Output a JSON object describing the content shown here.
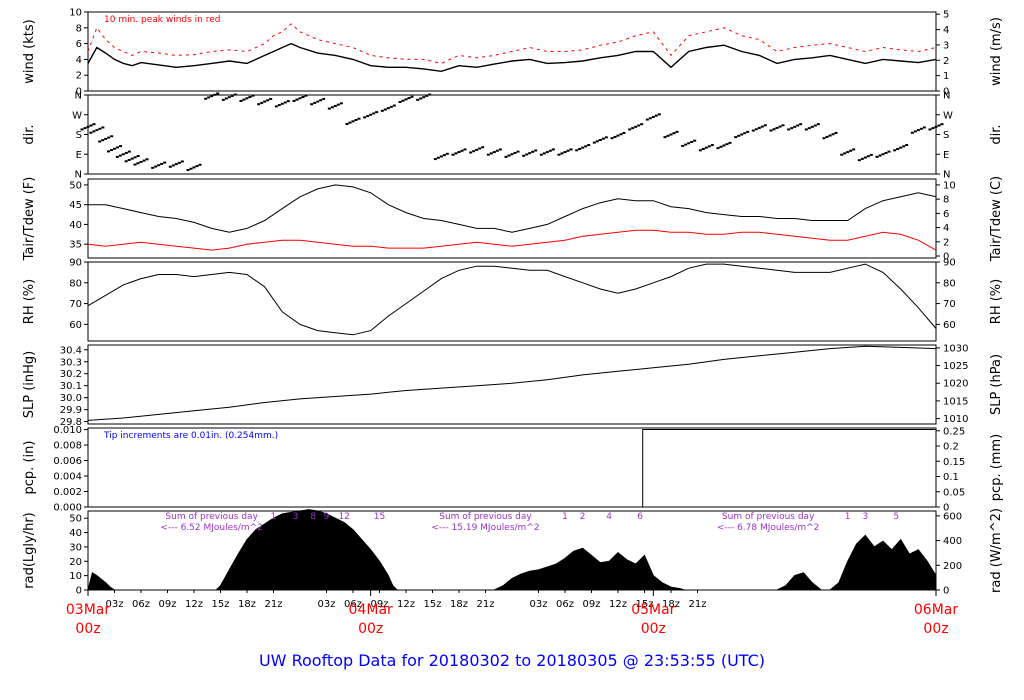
{
  "title": "UW Rooftop Data for 20180302  to  20180305 @ 23:53:55  (UTC)",
  "colors": {
    "primary": "#000000",
    "peak": "#ff0000",
    "dew": "#ff0000",
    "note": "#0000ff",
    "solar": "#9933cc",
    "date": "#ff0000",
    "title": "#0000ff"
  },
  "x_axis": {
    "hours_total": 96,
    "minor_ticks": [
      "03z",
      "06z",
      "09z",
      "12z",
      "15z",
      "18z",
      "21z",
      "03z",
      "06z",
      "09z",
      "12z",
      "15z",
      "18z",
      "21z",
      "03z",
      "06z",
      "09z",
      "12z",
      "15z",
      "18z",
      "21z"
    ],
    "minor_hours": [
      3,
      6,
      9,
      12,
      15,
      18,
      21,
      27,
      30,
      33,
      36,
      39,
      42,
      45,
      51,
      54,
      57,
      60,
      63,
      66,
      69
    ],
    "major": [
      {
        "date": "03Mar",
        "time": "00z",
        "hour": 0
      },
      {
        "date": "04Mar",
        "time": "00z",
        "hour": 32
      },
      {
        "date": "05Mar",
        "time": "00z",
        "hour": 64
      },
      {
        "date": "06Mar",
        "time": "00z",
        "hour": 96
      }
    ]
  },
  "chart_data": [
    {
      "type": "line",
      "id": "wind",
      "ylabel_left": "wind (kts)",
      "ylabel_right": "wind (m/s)",
      "ylim": [
        0,
        10
      ],
      "ticks_left": [
        0,
        2,
        4,
        6,
        8,
        10
      ],
      "ticks_right": [
        0,
        1,
        2,
        3,
        4,
        5
      ],
      "right_scale": 0.5144,
      "annotation": "10 min. peak winds in red",
      "x_hours": [
        0,
        1,
        2,
        3,
        4,
        5,
        6,
        8,
        10,
        12,
        14,
        16,
        18,
        20,
        21,
        22,
        23,
        24,
        26,
        28,
        30,
        32,
        34,
        36,
        38,
        40,
        42,
        44,
        46,
        48,
        50,
        52,
        54,
        56,
        58,
        60,
        62,
        64,
        66,
        68,
        70,
        72,
        74,
        76,
        78,
        80,
        82,
        84,
        86,
        88,
        90,
        92,
        94,
        96
      ],
      "series": [
        {
          "name": "wind",
          "values": [
            3.5,
            5.5,
            4.8,
            4,
            3.5,
            3.2,
            3.6,
            3.3,
            3,
            3.2,
            3.5,
            3.8,
            3.5,
            4.5,
            5,
            5.5,
            6,
            5.5,
            4.8,
            4.5,
            4,
            3.2,
            3,
            3,
            2.8,
            2.5,
            3.2,
            3,
            3.4,
            3.8,
            4,
            3.5,
            3.6,
            3.8,
            4.2,
            4.5,
            5,
            5,
            3,
            5,
            5.5,
            5.8,
            5,
            4.5,
            3.5,
            4,
            4.2,
            4.5,
            4,
            3.5,
            4,
            3.8,
            3.6,
            4
          ]
        },
        {
          "name": "10 min. peak winds",
          "values": [
            5,
            8,
            6.5,
            5.5,
            5,
            4.5,
            5,
            4.8,
            4.5,
            4.6,
            5,
            5.2,
            5,
            6,
            7,
            7.5,
            8.5,
            7.5,
            6.5,
            6,
            5.5,
            4.5,
            4.2,
            4,
            4,
            3.5,
            4.5,
            4.2,
            4.5,
            5,
            5.5,
            5,
            5,
            5.2,
            5.8,
            6.2,
            7,
            7.5,
            4.5,
            7,
            7.5,
            8,
            7,
            6.5,
            5,
            5.5,
            5.8,
            6,
            5.5,
            5,
            5.5,
            5.2,
            5,
            5.5
          ]
        }
      ]
    },
    {
      "type": "scatter",
      "id": "dir",
      "ylabel_left": "dir.",
      "ylabel_right": "dir.",
      "ylim": [
        0,
        360
      ],
      "tick_labels": [
        "N",
        "E",
        "S",
        "W",
        "N"
      ],
      "tick_values": [
        0,
        90,
        180,
        270,
        360
      ],
      "x_hours": [
        0,
        1,
        2,
        3,
        4,
        5,
        6,
        8,
        10,
        12,
        14,
        16,
        18,
        20,
        22,
        24,
        26,
        28,
        30,
        32,
        34,
        36,
        38,
        40,
        42,
        44,
        46,
        48,
        50,
        52,
        54,
        56,
        58,
        60,
        62,
        64,
        66,
        68,
        70,
        72,
        74,
        76,
        78,
        80,
        82,
        84,
        86,
        88,
        90,
        92,
        94,
        96
      ],
      "series": [
        {
          "name": "direction",
          "values": [
            215,
            200,
            160,
            115,
            90,
            70,
            55,
            40,
            45,
            30,
            355,
            350,
            345,
            330,
            320,
            345,
            330,
            310,
            240,
            270,
            300,
            340,
            350,
            80,
            100,
            110,
            100,
            90,
            95,
            100,
            100,
            120,
            155,
            175,
            215,
            260,
            180,
            140,
            120,
            130,
            180,
            210,
            210,
            215,
            215,
            175,
            100,
            75,
            90,
            120,
            200,
            215
          ]
        }
      ]
    },
    {
      "type": "line",
      "id": "temp",
      "ylabel_left": "Tair/Tdew (F)",
      "ylabel_right": "Tair/Tdew (C)",
      "ylim": [
        31.5,
        51.5
      ],
      "ticks_left": [
        35,
        40,
        45,
        50
      ],
      "ticks_right": [
        0,
        2,
        4,
        6,
        8,
        10
      ],
      "x_hours": [
        0,
        2,
        4,
        6,
        8,
        10,
        12,
        14,
        16,
        18,
        20,
        22,
        24,
        26,
        28,
        30,
        32,
        34,
        36,
        38,
        40,
        42,
        44,
        46,
        48,
        50,
        52,
        54,
        56,
        58,
        60,
        62,
        64,
        66,
        68,
        70,
        72,
        74,
        76,
        78,
        80,
        82,
        84,
        86,
        88,
        90,
        92,
        94,
        96
      ],
      "series": [
        {
          "name": "Tair",
          "values": [
            45,
            45,
            44,
            43,
            42,
            41.5,
            40.5,
            39,
            38,
            39,
            41,
            44,
            47,
            49,
            50,
            49.5,
            48,
            45,
            43,
            41.5,
            41,
            40,
            39,
            39,
            38,
            39,
            40,
            42,
            44,
            45.5,
            46.5,
            46,
            46,
            44.5,
            44,
            43,
            42.5,
            42,
            42,
            41.5,
            41.5,
            41,
            41,
            41,
            44,
            46,
            47,
            48,
            47
          ]
        },
        {
          "name": "Tdew",
          "values": [
            35,
            34.5,
            35,
            35.5,
            35,
            34.5,
            34,
            33.5,
            34,
            35,
            35.5,
            36,
            36,
            35.5,
            35,
            34.5,
            34.5,
            34,
            34,
            34,
            34.5,
            35,
            35.5,
            35,
            34.5,
            35,
            35.5,
            36,
            37,
            37.5,
            38,
            38.5,
            38.5,
            38,
            38,
            37.5,
            37.5,
            38,
            38,
            37.5,
            37,
            36.5,
            36,
            36,
            37,
            38,
            37.5,
            36,
            33.5
          ]
        }
      ]
    },
    {
      "type": "line",
      "id": "rh",
      "ylabel_left": "RH (%)",
      "ylabel_right": "RH (%)",
      "ylim": [
        52,
        90
      ],
      "ticks_left": [
        60,
        70,
        80,
        90
      ],
      "ticks_right": [
        60,
        70,
        80,
        90
      ],
      "x_hours": [
        0,
        2,
        4,
        6,
        8,
        10,
        12,
        14,
        16,
        18,
        20,
        22,
        24,
        26,
        28,
        30,
        32,
        34,
        36,
        38,
        40,
        42,
        44,
        46,
        48,
        50,
        52,
        54,
        56,
        58,
        60,
        62,
        64,
        66,
        68,
        70,
        72,
        74,
        76,
        78,
        80,
        82,
        84,
        86,
        88,
        90,
        92,
        94,
        96
      ],
      "series": [
        {
          "name": "RH",
          "values": [
            69,
            74,
            79,
            82,
            84,
            84,
            83,
            84,
            85,
            84,
            78,
            66,
            60,
            57,
            56,
            55,
            57,
            64,
            70,
            76,
            82,
            86,
            88,
            88,
            87,
            86,
            86,
            83,
            80,
            77,
            75,
            77,
            80,
            83,
            87,
            89,
            89,
            88,
            87,
            86,
            85,
            85,
            85,
            87,
            89,
            85,
            77,
            68,
            58
          ]
        }
      ]
    },
    {
      "type": "line",
      "id": "slp",
      "ylabel_left": "SLP (inHg)",
      "ylabel_right": "SLP (hPa)",
      "ylim": [
        29.78,
        30.44
      ],
      "ticks_left": [
        29.8,
        29.9,
        30.0,
        30.1,
        30.2,
        30.3,
        30.4
      ],
      "tick_labels_left": [
        "29.8",
        "29.9",
        "30.0",
        "30.1",
        "30.2",
        "30.3",
        "30.4"
      ],
      "ticks_right": [
        1010,
        1015,
        1020,
        1025,
        1030
      ],
      "x_hours": [
        0,
        4,
        8,
        12,
        16,
        20,
        24,
        28,
        32,
        36,
        40,
        44,
        48,
        52,
        56,
        60,
        64,
        68,
        72,
        76,
        80,
        84,
        88,
        92,
        96
      ],
      "series": [
        {
          "name": "SLP",
          "values": [
            29.81,
            29.83,
            29.86,
            29.89,
            29.92,
            29.96,
            29.99,
            30.01,
            30.03,
            30.06,
            30.08,
            30.1,
            30.12,
            30.15,
            30.19,
            30.22,
            30.25,
            30.28,
            30.32,
            30.35,
            30.38,
            30.41,
            30.43,
            30.42,
            30.41
          ]
        }
      ]
    },
    {
      "type": "line",
      "id": "pcp",
      "ylabel_left": "pcp. (in)",
      "ylabel_right": "pcp. (mm)",
      "ylim": [
        0,
        0.0102
      ],
      "ticks_left": [
        0,
        0.002,
        0.004,
        0.006,
        0.008,
        0.01
      ],
      "tick_labels_left": [
        "0.000",
        "0.002",
        "0.004",
        "0.006",
        "0.008",
        "0.010"
      ],
      "ticks_right": [
        0,
        0.05,
        0.1,
        0.15,
        0.2,
        0.25
      ],
      "annotation": "Tip increments are 0.01in. (0.254mm.)",
      "x_hours": [
        0,
        62.8,
        62.8,
        96
      ],
      "series": [
        {
          "name": "precip",
          "values": [
            0,
            0,
            0.01,
            0.01
          ]
        }
      ]
    },
    {
      "type": "area",
      "id": "rad",
      "ylabel_left": "rad(Lgly/hr)",
      "ylabel_right": "rad (W/m^2)",
      "ylim": [
        0,
        55
      ],
      "ticks_left": [
        0,
        10,
        20,
        30,
        40,
        50
      ],
      "ticks_right": [
        0,
        200,
        400,
        600
      ],
      "daily_notes": [
        {
          "label": "Sum of previous day",
          "value": "<--- 6.52 MJoules/m^2",
          "hour": 14
        },
        {
          "label": "Sum of previous day",
          "value": "<--- 15.19 MJoules/m^2",
          "hour": 45
        },
        {
          "label": "Sum of previous day",
          "value": "<--- 6.78 MJoules/m^2",
          "hour": 77
        }
      ],
      "hour_marks": [
        {
          "label": "1",
          "hour": 21
        },
        {
          "label": "3",
          "hour": 23.5
        },
        {
          "label": "8",
          "hour": 25.5
        },
        {
          "label": "9",
          "hour": 27
        },
        {
          "label": "12",
          "hour": 29
        },
        {
          "label": "15",
          "hour": 33
        },
        {
          "label": "1",
          "hour": 54
        },
        {
          "label": "2",
          "hour": 56
        },
        {
          "label": "4",
          "hour": 59
        },
        {
          "label": "6",
          "hour": 62.5
        },
        {
          "label": "1",
          "hour": 86
        },
        {
          "label": "3",
          "hour": 88
        },
        {
          "label": "5",
          "hour": 91.5
        }
      ],
      "x_hours": [
        0,
        0.5,
        1,
        2,
        2.5,
        3,
        14.5,
        15,
        16,
        17,
        18,
        19,
        20,
        21,
        22,
        23,
        24,
        25,
        26,
        27,
        28,
        29,
        30,
        31,
        32,
        33,
        34,
        34.5,
        35,
        46,
        47,
        48,
        49,
        50,
        51,
        52,
        53,
        54,
        55,
        56,
        57,
        58,
        59,
        60,
        61,
        62,
        63,
        64,
        65,
        66,
        67,
        67.5,
        68,
        78,
        79,
        80,
        81,
        82,
        83,
        84,
        85,
        86,
        87,
        88,
        89,
        90,
        91,
        92,
        93,
        94,
        95,
        96
      ],
      "series": [
        {
          "name": "solar",
          "values": [
            0,
            12,
            10,
            5,
            2,
            0,
            0,
            3,
            14,
            25,
            35,
            42,
            46,
            50,
            53,
            54,
            55,
            56,
            55,
            53,
            50,
            47,
            42,
            35,
            28,
            20,
            10,
            3,
            0,
            0,
            3,
            8,
            11,
            13,
            14,
            16,
            18,
            22,
            27,
            29,
            24,
            19,
            20,
            26,
            21,
            18,
            24,
            10,
            5,
            2,
            1,
            0,
            0,
            0,
            3,
            10,
            12,
            5,
            0,
            0,
            5,
            20,
            32,
            38,
            30,
            34,
            28,
            35,
            25,
            28,
            20,
            10
          ]
        }
      ]
    }
  ]
}
